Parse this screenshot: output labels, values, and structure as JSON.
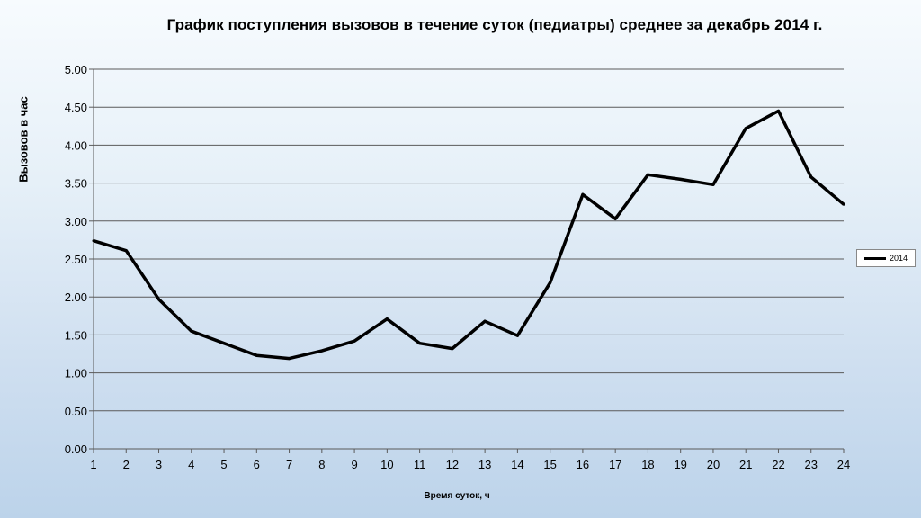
{
  "chart_data": {
    "type": "line",
    "title": "График поступления вызовов в течение суток (педиатры) среднее за декабрь 2014 г.",
    "xlabel": "Время суток, ч",
    "ylabel": "Вызовов в час",
    "x": [
      1,
      2,
      3,
      4,
      5,
      6,
      7,
      8,
      9,
      10,
      11,
      12,
      13,
      14,
      15,
      16,
      17,
      18,
      19,
      20,
      21,
      22,
      23,
      24
    ],
    "series": [
      {
        "name": "2014",
        "color": "#000000",
        "values": [
          2.74,
          2.61,
          1.97,
          1.55,
          1.39,
          1.23,
          1.19,
          1.29,
          1.42,
          1.71,
          1.39,
          1.32,
          1.68,
          1.49,
          2.19,
          3.35,
          3.03,
          3.61,
          3.55,
          3.48,
          4.22,
          4.45,
          3.58,
          3.22
        ]
      }
    ],
    "ylim": [
      0,
      5
    ],
    "yticks": [
      "0.00",
      "0.50",
      "1.00",
      "1.50",
      "2.00",
      "2.50",
      "3.00",
      "3.50",
      "4.00",
      "4.50",
      "5.00"
    ],
    "xticks": [
      "1",
      "2",
      "3",
      "4",
      "5",
      "6",
      "7",
      "8",
      "9",
      "10",
      "11",
      "12",
      "13",
      "14",
      "15",
      "16",
      "17",
      "18",
      "19",
      "20",
      "21",
      "22",
      "23",
      "24"
    ],
    "grid": true,
    "legend_position": "right"
  }
}
